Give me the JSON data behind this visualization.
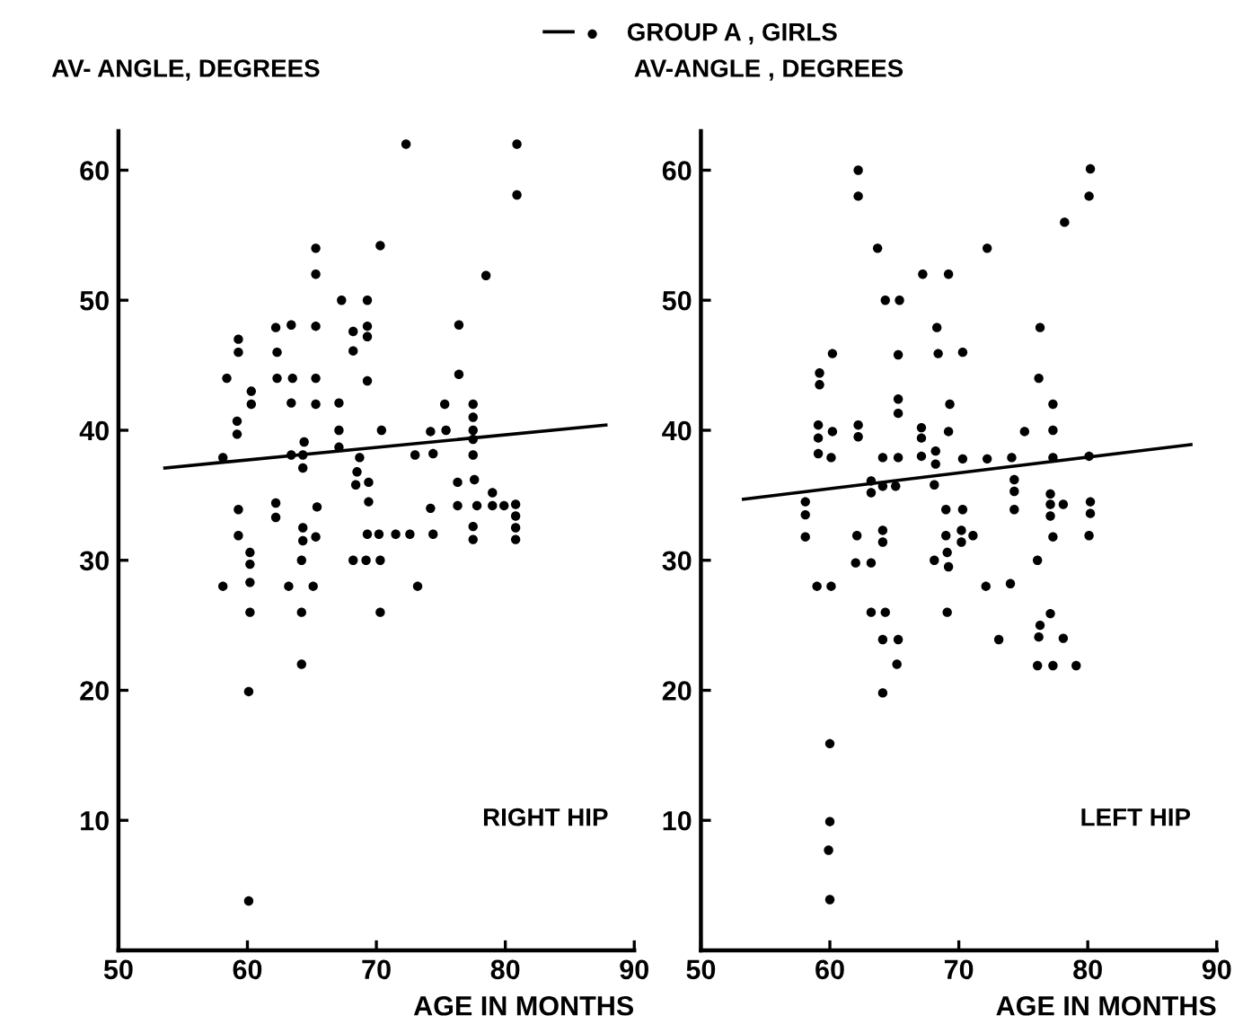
{
  "chart_data": [
    {
      "type": "scatter",
      "ylabel": "AV- ANGLE, DEGREES",
      "xlabel": "AGE IN MONTHS",
      "annotations": [
        "RIGHT HIP"
      ],
      "xlim": [
        50,
        90
      ],
      "xticks": [
        50,
        60,
        70,
        80,
        90
      ],
      "ylim": [
        0,
        63
      ],
      "yticks": [
        10,
        20,
        30,
        40,
        50,
        60
      ],
      "grid": false,
      "legend": "top",
      "marker": "circle",
      "series": [
        {
          "name": "GROUP A , GIRLS",
          "color": "#000000",
          "x": [
            72.3,
            80.9,
            80.9,
            78.5,
            65.3,
            65.3,
            70.3,
            67.3,
            69.3,
            62.2,
            63.4,
            65.3,
            68.2,
            69.3,
            69.3,
            59.3,
            59.3,
            62.3,
            68.2,
            76.4,
            58.4,
            62.3,
            63.5,
            65.3,
            69.3,
            76.4,
            60.3,
            60.3,
            63.4,
            65.3,
            67.1,
            75.3,
            77.5,
            77.5,
            59.2,
            59.2,
            67.1,
            70.4,
            74.2,
            75.4,
            77.5,
            77.5,
            58.1,
            63.4,
            64.3,
            64.4,
            64.3,
            67.1,
            68.7,
            68.5,
            68.4,
            69.4,
            73.0,
            74.4,
            77.5,
            76.3,
            77.6,
            59.3,
            62.2,
            62.2,
            65.4,
            69.4,
            74.2,
            76.3,
            77.8,
            79.0,
            79.0,
            79.9,
            80.8,
            80.8,
            80.8,
            80.8,
            59.3,
            64.3,
            64.3,
            65.3,
            69.3,
            70.2,
            71.5,
            72.6,
            74.4,
            77.5,
            77.5,
            58.1,
            60.2,
            60.2,
            60.2,
            60.2,
            63.2,
            64.2,
            65.1,
            64.2,
            64.2,
            60.1,
            60.1,
            68.2,
            69.2,
            70.3,
            70.3,
            73.2
          ],
          "values": [
            62,
            62,
            58.1,
            51.9,
            54,
            52,
            54.2,
            50,
            50,
            47.9,
            48.1,
            48,
            47.6,
            48,
            47.2,
            47,
            46,
            46,
            46.1,
            48.1,
            44,
            44,
            44,
            44,
            43.8,
            44.3,
            43,
            42,
            42.1,
            42,
            42.1,
            42,
            42,
            41,
            40.7,
            39.7,
            40,
            40,
            39.9,
            40,
            40,
            39.3,
            37.9,
            38.1,
            38.1,
            39.1,
            37.1,
            38.7,
            37.9,
            36.8,
            35.8,
            36,
            38.1,
            38.2,
            38.1,
            36,
            36.2,
            33.9,
            34.4,
            33.3,
            34.1,
            34.5,
            34,
            34.2,
            34.2,
            35.2,
            34.2,
            34.2,
            34.3,
            33.4,
            32.5,
            31.6,
            31.9,
            32.5,
            31.5,
            31.8,
            32,
            32,
            32,
            32,
            32,
            32.6,
            31.6,
            28,
            30.6,
            29.7,
            28.3,
            26,
            28,
            30,
            28,
            26,
            22,
            19.9,
            3.8,
            30,
            30,
            30,
            26,
            28
          ]
        },
        {
          "type": "line",
          "marker": "none",
          "color": "#000000",
          "x": [
            53.6,
            87.8
          ],
          "values": [
            37.1,
            40.4
          ]
        }
      ]
    },
    {
      "type": "scatter",
      "ylabel": "AV-ANGLE , DEGREES",
      "xlabel": "AGE IN MONTHS",
      "annotations": [
        "LEFT HIP"
      ],
      "xlim": [
        50,
        90
      ],
      "xticks": [
        50,
        60,
        70,
        80,
        90
      ],
      "ylim": [
        0,
        63
      ],
      "yticks": [
        10,
        20,
        30,
        40,
        50,
        60
      ],
      "grid": false,
      "marker": "circle",
      "series": [
        {
          "color": "#000000",
          "x": [
            62.2,
            62.2,
            63.7,
            64.3,
            65.4,
            67.2,
            69.2,
            72.2,
            78.2,
            80.2,
            80.1,
            60.2,
            59.2,
            59.2,
            65.3,
            68.3,
            68.4,
            70.3,
            76.3,
            76.2,
            65.3,
            65.3,
            69.3,
            77.3,
            59.1,
            59.1,
            60.2,
            62.2,
            62.2,
            67.1,
            67.1,
            69.2,
            75.1,
            77.3,
            59.1,
            60.1,
            64.1,
            65.3,
            67.1,
            68.2,
            68.2,
            70.3,
            72.2,
            74.1,
            77.3,
            80.1,
            63.2,
            63.2,
            64.1,
            65.1,
            68.1,
            74.3,
            74.3,
            74.3,
            77.1,
            77.1,
            77.1,
            78.1,
            80.2,
            80.2,
            58.1,
            58.1,
            58.1,
            62.1,
            64.1,
            64.1,
            69.0,
            70.3,
            69.0,
            70.2,
            70.2,
            71.1,
            77.3,
            80.1,
            59.0,
            60.1,
            62.0,
            63.2,
            63.2,
            64.3,
            64.1,
            65.3,
            65.2,
            64.1,
            60.0,
            60.0,
            59.9,
            60.0,
            68.1,
            69.1,
            69.2,
            69.1,
            72.1,
            74.0,
            73.1,
            76.1,
            77.1,
            76.3,
            76.2,
            76.1,
            77.3,
            78.1,
            79.1
          ],
          "values": [
            60,
            58,
            54,
            50,
            50,
            52,
            52,
            54,
            56,
            60.1,
            58,
            45.9,
            44.4,
            43.5,
            45.8,
            47.9,
            45.9,
            46,
            47.9,
            44,
            42.4,
            41.3,
            42,
            42,
            40.4,
            39.4,
            39.9,
            40.4,
            39.5,
            40.2,
            39.4,
            39.9,
            39.9,
            40,
            38.2,
            37.9,
            37.9,
            37.9,
            38,
            38.4,
            37.4,
            37.8,
            37.8,
            37.9,
            37.9,
            38,
            36.1,
            35.2,
            35.7,
            35.7,
            35.8,
            36.2,
            35.3,
            33.9,
            35.1,
            34.3,
            33.4,
            34.3,
            34.5,
            33.6,
            34.5,
            33.5,
            31.8,
            31.9,
            32.3,
            31.4,
            33.9,
            33.9,
            31.9,
            32.3,
            31.4,
            31.9,
            31.8,
            31.9,
            28,
            28,
            29.8,
            29.8,
            26,
            26,
            23.9,
            23.9,
            22,
            19.8,
            15.9,
            9.9,
            7.7,
            3.9,
            30,
            30.6,
            29.5,
            26,
            28,
            28.2,
            23.9,
            30,
            25.9,
            25,
            24.1,
            21.9,
            21.9,
            24,
            21.9
          ]
        },
        {
          "type": "line",
          "marker": "none",
          "color": "#000000",
          "x": [
            53.3,
            88.0
          ],
          "values": [
            34.7,
            38.9
          ]
        }
      ]
    }
  ]
}
